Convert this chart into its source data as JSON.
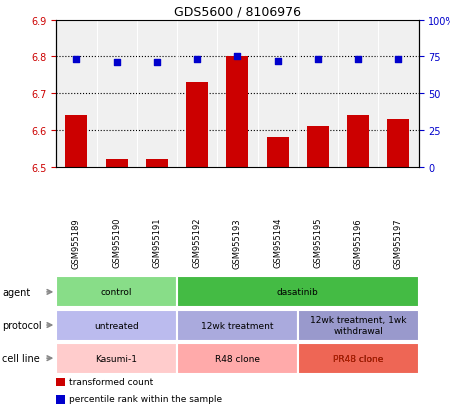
{
  "title": "GDS5600 / 8106976",
  "samples": [
    "GSM955189",
    "GSM955190",
    "GSM955191",
    "GSM955192",
    "GSM955193",
    "GSM955194",
    "GSM955195",
    "GSM955196",
    "GSM955197"
  ],
  "bar_values": [
    6.64,
    6.52,
    6.52,
    6.73,
    6.8,
    6.58,
    6.61,
    6.64,
    6.63
  ],
  "bar_bottom": 6.5,
  "percentile_values": [
    73,
    71,
    71,
    73,
    75,
    72,
    73,
    73,
    73
  ],
  "ylim_left": [
    6.5,
    6.9
  ],
  "ylim_right": [
    0,
    100
  ],
  "yticks_left": [
    6.5,
    6.6,
    6.7,
    6.8,
    6.9
  ],
  "yticks_right": [
    0,
    25,
    50,
    75,
    100
  ],
  "bar_color": "#cc0000",
  "dot_color": "#0000cc",
  "agent_groups": [
    {
      "label": "control",
      "start": 0,
      "end": 3,
      "color": "#88dd88"
    },
    {
      "label": "dasatinib",
      "start": 3,
      "end": 9,
      "color": "#44bb44"
    }
  ],
  "protocol_groups": [
    {
      "label": "untreated",
      "start": 0,
      "end": 3,
      "color": "#bbbbee"
    },
    {
      "label": "12wk treatment",
      "start": 3,
      "end": 6,
      "color": "#aaaadd"
    },
    {
      "label": "12wk treatment, 1wk\nwithdrawal",
      "start": 6,
      "end": 9,
      "color": "#9999cc"
    }
  ],
  "cellline_groups": [
    {
      "label": "Kasumi-1",
      "start": 0,
      "end": 3,
      "color": "#ffcccc"
    },
    {
      "label": "R48 clone",
      "start": 3,
      "end": 6,
      "color": "#ffaaaa"
    },
    {
      "label": "PR48 clone",
      "start": 6,
      "end": 9,
      "color": "#ee6655"
    }
  ],
  "row_labels": [
    "agent",
    "protocol",
    "cell line"
  ],
  "legend_items": [
    {
      "label": "transformed count",
      "color": "#cc0000"
    },
    {
      "label": "percentile rank within the sample",
      "color": "#0000cc"
    }
  ],
  "bar_color_left": "#cc0000",
  "tick_color_right": "#0000cc",
  "plot_bg": "#f0f0f0",
  "xtick_area_bg": "#cccccc"
}
